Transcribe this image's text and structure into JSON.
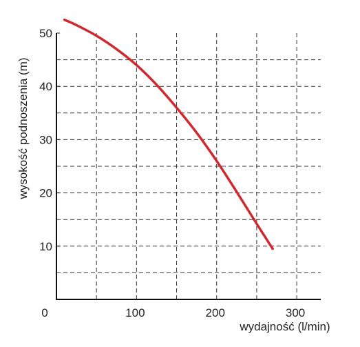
{
  "chart_data": {
    "type": "line",
    "xlabel": "wydajność (l/min)",
    "ylabel": "wysokość podnoszenia (m)",
    "xlim": [
      0,
      330
    ],
    "ylim": [
      0,
      50
    ],
    "x_ticks": [
      0,
      100,
      200,
      300
    ],
    "y_ticks": [
      10,
      20,
      30,
      40,
      50
    ],
    "x_grid_step": 50,
    "y_grid_step": 5,
    "grid": true,
    "grid_style": "dashed",
    "series": [
      {
        "color": "#d0282e",
        "x": [
          10,
          25,
          50,
          75,
          100,
          125,
          150,
          175,
          200,
          225,
          250,
          270
        ],
        "y": [
          52.5,
          51.5,
          49.5,
          47,
          44,
          40.3,
          36,
          31.3,
          26,
          20.2,
          14.2,
          9.5
        ]
      }
    ]
  }
}
